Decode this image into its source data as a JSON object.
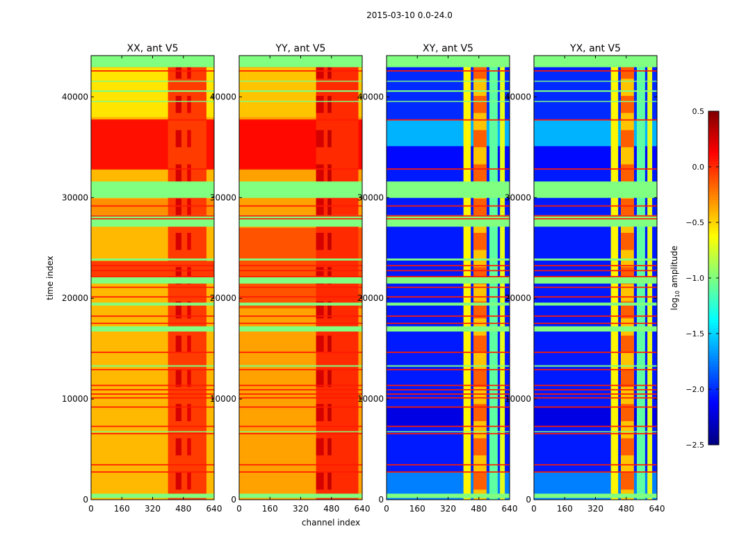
{
  "chart_data": {
    "type": "heatmap",
    "suptitle": "2015-03-10 0.0-24.0",
    "xlabel": "channel index",
    "ylabel": "time index",
    "xlim": [
      0,
      640
    ],
    "ylim": [
      0,
      44100
    ],
    "xticks": [
      0,
      160,
      320,
      480,
      640
    ],
    "yticks": [
      0,
      10000,
      20000,
      30000,
      40000
    ],
    "colorbar": {
      "label_main": "log",
      "label_sub": "10",
      "label_rest": " amplitude",
      "range": [
        -2.5,
        0.5
      ],
      "ticks": [
        "0.5",
        "0.0",
        "−0.5",
        "−1.0",
        "−1.5",
        "−2.0",
        "−2.5"
      ],
      "tick_values": [
        0.5,
        0.0,
        -0.5,
        -1.0,
        -1.5,
        -2.0,
        -2.5
      ],
      "colormap": "jet"
    },
    "flags": {
      "green_value": -1.0,
      "red_value": 0.05,
      "green_bands": [
        [
          42950,
          44100
        ],
        [
          29970,
          31600
        ],
        [
          27110,
          28250
        ],
        [
          23750,
          23950
        ],
        [
          21460,
          22090
        ],
        [
          19280,
          19570
        ],
        [
          16700,
          17220
        ],
        [
          13210,
          13350
        ],
        [
          6700,
          6800
        ],
        [
          170,
          600
        ],
        [
          40500,
          40650
        ],
        [
          39500,
          39600
        ],
        [
          41500,
          41600
        ]
      ],
      "red_lines": [
        42580,
        37710,
        32840,
        29170,
        28180,
        27900,
        23240,
        22750,
        22150,
        21090,
        20140,
        18230,
        17510,
        14640,
        12920,
        11350,
        10920,
        10490,
        10110,
        9200,
        7280,
        6560,
        3470,
        2750
      ]
    },
    "panels": [
      {
        "title": "XX, ant V5",
        "base": -0.42,
        "bands": [
          [
            32840,
            37710,
            0.08
          ],
          [
            22200,
            23700,
            -0.05
          ],
          [
            38000,
            42900,
            -0.55
          ],
          [
            28300,
            29900,
            -0.3
          ]
        ],
        "columns": [
          [
            400,
            600,
            -0.05
          ]
        ],
        "column_blocks": [
          [
            440,
            470,
            0.25
          ],
          [
            500,
            520,
            0.2
          ]
        ]
      },
      {
        "title": "YY, ant V5",
        "base": -0.35,
        "bands": [
          [
            32840,
            37710,
            0.1
          ],
          [
            19000,
            27000,
            -0.12
          ],
          [
            38000,
            42900,
            -0.45
          ]
        ],
        "columns": [
          [
            400,
            620,
            0.0
          ]
        ],
        "column_blocks": [
          [
            400,
            440,
            0.25
          ],
          [
            460,
            480,
            0.3
          ]
        ]
      },
      {
        "title": "XY, ant V5",
        "base": -2.05,
        "bands": [
          [
            35100,
            37710,
            -1.6
          ],
          [
            32840,
            35100,
            -2.1
          ],
          [
            0,
            2700,
            -1.75
          ],
          [
            37710,
            42580,
            -2.0
          ],
          [
            7300,
            9200,
            -2.2
          ]
        ],
        "columns": [
          [
            400,
            438,
            -0.6
          ],
          [
            452,
            520,
            -0.45
          ],
          [
            535,
            578,
            -1.1
          ],
          [
            590,
            615,
            -0.7
          ]
        ],
        "column_blocks": [
          [
            452,
            520,
            -0.15
          ]
        ]
      },
      {
        "title": "YX, ant V5",
        "base": -2.05,
        "bands": [
          [
            35100,
            37710,
            -1.6
          ],
          [
            32840,
            35100,
            -2.1
          ],
          [
            0,
            2700,
            -1.75
          ],
          [
            37710,
            42580,
            -2.0
          ],
          [
            7300,
            9200,
            -2.2
          ]
        ],
        "columns": [
          [
            400,
            438,
            -0.6
          ],
          [
            452,
            520,
            -0.45
          ],
          [
            535,
            578,
            -1.1
          ],
          [
            590,
            615,
            -0.7
          ]
        ],
        "column_blocks": [
          [
            452,
            520,
            -0.15
          ]
        ]
      }
    ]
  }
}
